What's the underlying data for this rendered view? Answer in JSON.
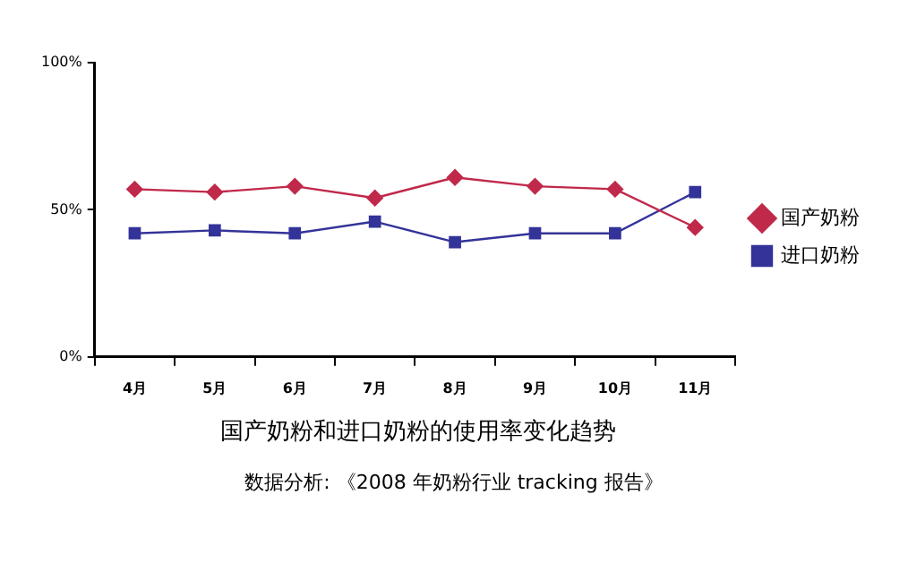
{
  "chart_data": {
    "type": "line",
    "title": "国产奶粉和进口奶粉的使用率变化趋势",
    "categories": [
      "4月",
      "5月",
      "6月",
      "7月",
      "8月",
      "9月",
      "10月",
      "11月"
    ],
    "series": [
      {
        "name": "国产奶粉",
        "color": "#c0294a",
        "marker": "diamond",
        "values": [
          57,
          56,
          58,
          54,
          61,
          58,
          57,
          44
        ]
      },
      {
        "name": "进口奶粉",
        "color": "#333399",
        "marker": "square",
        "values": [
          42,
          43,
          42,
          46,
          39,
          42,
          42,
          56
        ]
      }
    ],
    "ylim": [
      0,
      100
    ],
    "yticks": [
      {
        "value": 0,
        "label": "0%"
      },
      {
        "value": 50,
        "label": "50%"
      },
      {
        "value": 100,
        "label": "100%"
      }
    ],
    "grid": false,
    "legend": "right",
    "line_style": "solid",
    "annotations": [
      "数据分析: 《2008 年奶粉行业 tracking 报告》"
    ]
  }
}
